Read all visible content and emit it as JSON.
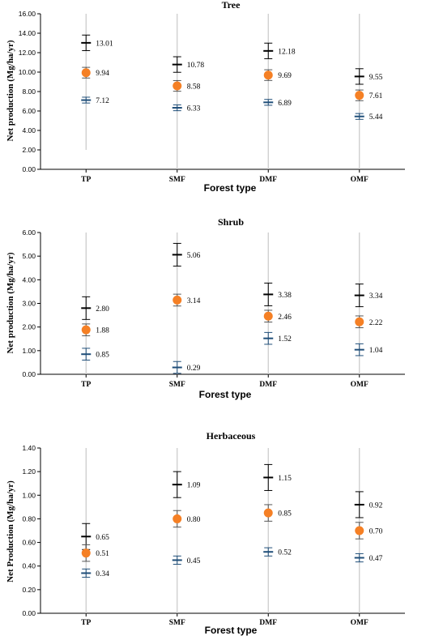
{
  "chart_data": [
    {
      "type": "scatter",
      "title": "Tree",
      "xlabel": "Forest type",
      "ylabel": "Net production (Mg/ha/yr)",
      "categories": [
        "TP",
        "SMF",
        "DMF",
        "OMF"
      ],
      "ylim": [
        0,
        16
      ],
      "ytick_step": 2,
      "ytick_decimals": 2,
      "series": [
        {
          "role": "upper",
          "values": [
            13.01,
            10.78,
            12.18,
            9.55
          ],
          "labels": [
            "13.01",
            "10.78",
            "12.18",
            "9.55"
          ],
          "err": [
            0.8,
            0.8,
            0.8,
            0.8
          ],
          "color": "#000000"
        },
        {
          "role": "mean",
          "values": [
            9.94,
            8.58,
            9.69,
            7.61
          ],
          "labels": [
            "9.94",
            "8.58",
            "9.69",
            "7.61"
          ],
          "err": [
            0.55,
            0.55,
            0.55,
            0.55
          ],
          "color": "#F58025"
        },
        {
          "role": "lower",
          "values": [
            7.12,
            6.33,
            6.89,
            5.44
          ],
          "labels": [
            "7.12",
            "6.33",
            "6.89",
            "5.44"
          ],
          "err": [
            0.3,
            0.3,
            0.3,
            0.3
          ],
          "color": "#1F4E79"
        }
      ],
      "whisker": {
        "low": [
          2.0,
          0.0,
          0.0,
          0.0
        ],
        "high": [
          16.0,
          16.0,
          16.0,
          16.0
        ]
      }
    },
    {
      "type": "scatter",
      "title": "Shrub",
      "xlabel": "Forest type",
      "ylabel": "Net production (Mg/ha/yr)",
      "categories": [
        "TP",
        "SMF",
        "DMF",
        "OMF"
      ],
      "ylim": [
        0,
        6
      ],
      "ytick_step": 1,
      "ytick_decimals": 2,
      "series": [
        {
          "role": "upper",
          "values": [
            2.8,
            5.06,
            3.38,
            3.34
          ],
          "labels": [
            "2.80",
            "5.06",
            "3.38",
            "3.34"
          ],
          "err": [
            0.48,
            0.48,
            0.48,
            0.48
          ],
          "color": "#000000"
        },
        {
          "role": "mean",
          "values": [
            1.88,
            3.14,
            2.46,
            2.22
          ],
          "labels": [
            "1.88",
            "3.14",
            "2.46",
            "2.22"
          ],
          "err": [
            0.25,
            0.25,
            0.25,
            0.25
          ],
          "color": "#F58025"
        },
        {
          "role": "lower",
          "values": [
            0.85,
            0.29,
            1.52,
            1.04
          ],
          "labels": [
            "0.85",
            "0.29",
            "1.52",
            "1.04"
          ],
          "err": [
            0.25,
            0.25,
            0.25,
            0.25
          ],
          "color": "#1F4E79"
        }
      ],
      "whisker": {
        "low": [
          0.0,
          0.0,
          0.0,
          0.0
        ],
        "high": [
          6.0,
          6.0,
          6.0,
          6.0
        ]
      }
    },
    {
      "type": "scatter",
      "title": "Herbaceous",
      "xlabel": "Forest type",
      "ylabel": "Net Production (Mg/ha/yr)",
      "categories": [
        "TP",
        "SMF",
        "DMF",
        "OMF"
      ],
      "ylim": [
        0,
        1.4
      ],
      "ytick_step": 0.2,
      "ytick_decimals": 2,
      "series": [
        {
          "role": "upper",
          "values": [
            0.65,
            1.09,
            1.15,
            0.92
          ],
          "labels": [
            "0.65",
            "1.09",
            "1.15",
            "0.92"
          ],
          "err": [
            0.11,
            0.11,
            0.11,
            0.11
          ],
          "color": "#000000"
        },
        {
          "role": "mean",
          "values": [
            0.51,
            0.8,
            0.85,
            0.7
          ],
          "labels": [
            "0.51",
            "0.80",
            "0.85",
            "0.70"
          ],
          "err": [
            0.07,
            0.07,
            0.07,
            0.07
          ],
          "color": "#F58025"
        },
        {
          "role": "lower",
          "values": [
            0.34,
            0.45,
            0.52,
            0.47
          ],
          "labels": [
            "0.34",
            "0.45",
            "0.52",
            "0.47"
          ],
          "err": [
            0.035,
            0.035,
            0.035,
            0.035
          ],
          "color": "#1F4E79"
        }
      ],
      "whisker": {
        "low": [
          0.0,
          0.0,
          0.0,
          0.0
        ],
        "high": [
          1.4,
          1.4,
          1.4,
          1.4
        ]
      }
    }
  ]
}
